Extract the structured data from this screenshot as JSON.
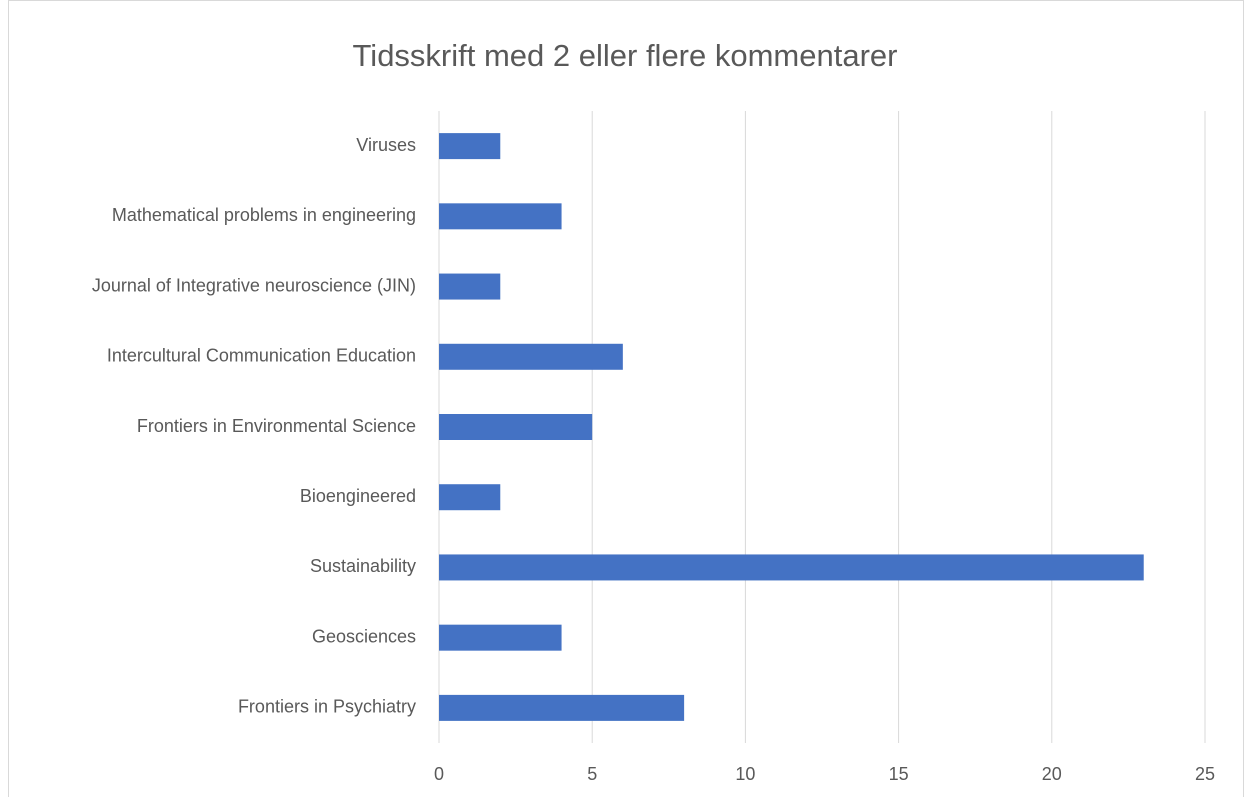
{
  "chart_data": {
    "type": "bar",
    "orientation": "horizontal",
    "title": "Tidsskrift med 2 eller flere kommentarer",
    "categories": [
      "Viruses",
      "Mathematical problems in engineering",
      "Journal of Integrative neuroscience (JIN)",
      "Intercultural Communication Education",
      "Frontiers in Environmental Science",
      "Bioengineered",
      "Sustainability",
      "Geosciences",
      "Frontiers in Psychiatry"
    ],
    "values": [
      2,
      4,
      2,
      6,
      5,
      2,
      23,
      4,
      8
    ],
    "color": "#4472c4",
    "xlim": [
      0,
      25
    ],
    "xticks": [
      0,
      5,
      10,
      15,
      20,
      25
    ],
    "grid": true
  }
}
